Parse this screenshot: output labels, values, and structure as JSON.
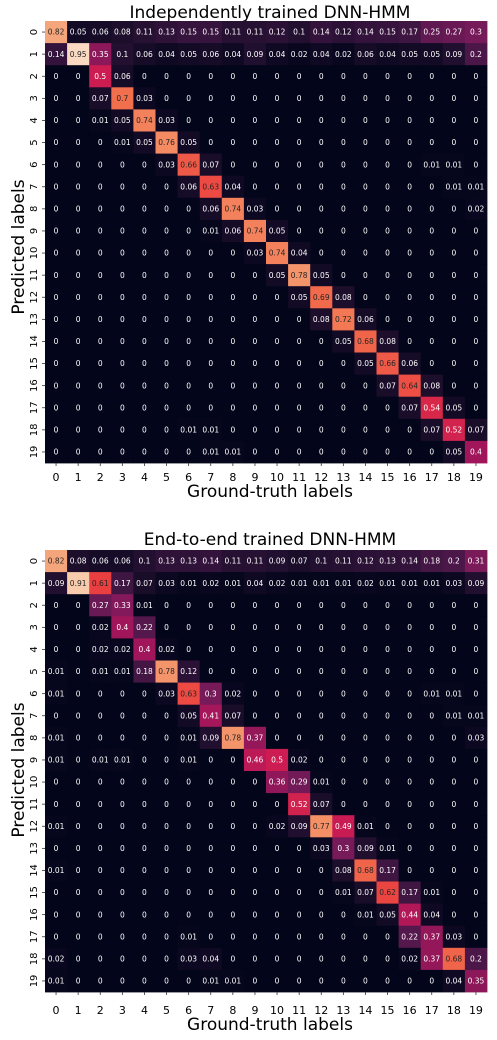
{
  "chart_data": [
    {
      "type": "heatmap",
      "title": "Independently trained DNN-HMM",
      "xlabel": "Ground-truth labels",
      "ylabel": "Predicted labels",
      "x_ticks": [
        "0",
        "1",
        "2",
        "3",
        "4",
        "5",
        "6",
        "7",
        "8",
        "9",
        "10",
        "11",
        "12",
        "13",
        "14",
        "15",
        "16",
        "17",
        "18",
        "19"
      ],
      "y_ticks": [
        "0",
        "1",
        "2",
        "3",
        "4",
        "5",
        "6",
        "7",
        "8",
        "9",
        "10",
        "11",
        "12",
        "13",
        "14",
        "15",
        "16",
        "17",
        "18",
        "19"
      ],
      "colormap": "rocket",
      "value_range": [
        0,
        1
      ],
      "colorbar": false,
      "values": [
        [
          0.82,
          0.05,
          0.06,
          0.08,
          0.11,
          0.13,
          0.15,
          0.15,
          0.11,
          0.11,
          0.12,
          0.1,
          0.14,
          0.12,
          0.14,
          0.15,
          0.17,
          0.25,
          0.27,
          0.3
        ],
        [
          0.14,
          0.95,
          0.35,
          0.1,
          0.06,
          0.04,
          0.05,
          0.06,
          0.04,
          0.09,
          0.04,
          0.02,
          0.04,
          0.02,
          0.06,
          0.04,
          0.05,
          0.05,
          0.09,
          0.2
        ],
        [
          0,
          0,
          0.5,
          0.06,
          0,
          0,
          0,
          0,
          0,
          0,
          0,
          0,
          0,
          0,
          0,
          0,
          0,
          0,
          0,
          0
        ],
        [
          0,
          0,
          0.07,
          0.7,
          0.03,
          0,
          0,
          0,
          0,
          0,
          0,
          0,
          0,
          0,
          0,
          0,
          0,
          0,
          0,
          0
        ],
        [
          0,
          0,
          0.01,
          0.05,
          0.74,
          0.03,
          0,
          0,
          0,
          0,
          0,
          0,
          0,
          0,
          0,
          0,
          0,
          0,
          0,
          0
        ],
        [
          0,
          0,
          0,
          0.01,
          0.05,
          0.76,
          0.05,
          0,
          0,
          0,
          0,
          0,
          0,
          0,
          0,
          0,
          0,
          0,
          0,
          0
        ],
        [
          0,
          0,
          0,
          0,
          0,
          0.03,
          0.66,
          0.07,
          0,
          0,
          0,
          0,
          0,
          0,
          0,
          0,
          0,
          0.01,
          0.01,
          0
        ],
        [
          0,
          0,
          0,
          0,
          0,
          0,
          0.06,
          0.63,
          0.04,
          0,
          0,
          0,
          0,
          0,
          0,
          0,
          0,
          0,
          0.01,
          0.01
        ],
        [
          0,
          0,
          0,
          0,
          0,
          0,
          0,
          0.06,
          0.74,
          0.03,
          0,
          0,
          0,
          0,
          0,
          0,
          0,
          0,
          0,
          0.02
        ],
        [
          0,
          0,
          0,
          0,
          0,
          0,
          0,
          0.01,
          0.06,
          0.74,
          0.05,
          0,
          0,
          0,
          0,
          0,
          0,
          0,
          0,
          0
        ],
        [
          0,
          0,
          0,
          0,
          0,
          0,
          0,
          0,
          0,
          0.03,
          0.74,
          0.04,
          0,
          0,
          0,
          0,
          0,
          0,
          0,
          0
        ],
        [
          0,
          0,
          0,
          0,
          0,
          0,
          0,
          0,
          0,
          0,
          0.05,
          0.78,
          0.05,
          0,
          0,
          0,
          0,
          0,
          0,
          0
        ],
        [
          0,
          0,
          0,
          0,
          0,
          0,
          0,
          0,
          0,
          0,
          0,
          0.05,
          0.69,
          0.08,
          0,
          0,
          0,
          0,
          0,
          0
        ],
        [
          0,
          0,
          0,
          0,
          0,
          0,
          0,
          0,
          0,
          0,
          0,
          0,
          0.08,
          0.72,
          0.06,
          0,
          0,
          0,
          0,
          0
        ],
        [
          0,
          0,
          0,
          0,
          0,
          0,
          0,
          0,
          0,
          0,
          0,
          0,
          0,
          0.05,
          0.68,
          0.08,
          0,
          0,
          0,
          0
        ],
        [
          0,
          0,
          0,
          0,
          0,
          0,
          0,
          0,
          0,
          0,
          0,
          0,
          0,
          0,
          0.05,
          0.66,
          0.06,
          0,
          0,
          0
        ],
        [
          0,
          0,
          0,
          0,
          0,
          0,
          0,
          0,
          0,
          0,
          0,
          0,
          0,
          0,
          0,
          0.07,
          0.64,
          0.08,
          0,
          0
        ],
        [
          0,
          0,
          0,
          0,
          0,
          0,
          0,
          0,
          0,
          0,
          0,
          0,
          0,
          0,
          0,
          0,
          0.07,
          0.54,
          0.05,
          0
        ],
        [
          0,
          0,
          0,
          0,
          0,
          0,
          0.01,
          0.01,
          0,
          0,
          0,
          0,
          0,
          0,
          0,
          0,
          0,
          0.07,
          0.52,
          0.07
        ],
        [
          0,
          0,
          0,
          0,
          0,
          0,
          0,
          0.01,
          0.01,
          0,
          0,
          0,
          0,
          0,
          0,
          0,
          0,
          0,
          0.05,
          0.4
        ]
      ]
    },
    {
      "type": "heatmap",
      "title": "End-to-end trained DNN-HMM",
      "xlabel": "Ground-truth labels",
      "ylabel": "Predicted labels",
      "x_ticks": [
        "0",
        "1",
        "2",
        "3",
        "4",
        "5",
        "6",
        "7",
        "8",
        "9",
        "10",
        "11",
        "12",
        "13",
        "14",
        "15",
        "16",
        "17",
        "18",
        "19"
      ],
      "y_ticks": [
        "0",
        "1",
        "2",
        "3",
        "4",
        "5",
        "6",
        "7",
        "8",
        "9",
        "10",
        "11",
        "12",
        "13",
        "14",
        "15",
        "16",
        "17",
        "18",
        "19"
      ],
      "colormap": "rocket",
      "value_range": [
        0,
        1
      ],
      "colorbar": false,
      "values": [
        [
          0.82,
          0.08,
          0.06,
          0.06,
          0.1,
          0.13,
          0.13,
          0.14,
          0.11,
          0.11,
          0.09,
          0.07,
          0.1,
          0.11,
          0.12,
          0.13,
          0.14,
          0.18,
          0.2,
          0.31
        ],
        [
          0.09,
          0.91,
          0.61,
          0.17,
          0.07,
          0.03,
          0.01,
          0.02,
          0.01,
          0.04,
          0.02,
          0.01,
          0.01,
          0.01,
          0.02,
          0.01,
          0.01,
          0.01,
          0.03,
          0.09
        ],
        [
          0,
          0,
          0.27,
          0.33,
          0.01,
          0,
          0,
          0,
          0,
          0,
          0,
          0,
          0,
          0,
          0,
          0,
          0,
          0,
          0,
          0
        ],
        [
          0,
          0,
          0.02,
          0.4,
          0.22,
          0,
          0,
          0,
          0,
          0,
          0,
          0,
          0,
          0,
          0,
          0,
          0,
          0,
          0,
          0
        ],
        [
          0,
          0,
          0.02,
          0.02,
          0.4,
          0.02,
          0,
          0,
          0,
          0,
          0,
          0,
          0,
          0,
          0,
          0,
          0,
          0,
          0,
          0
        ],
        [
          0.01,
          0,
          0.01,
          0.01,
          0.18,
          0.78,
          0.12,
          0,
          0,
          0,
          0,
          0,
          0,
          0,
          0,
          0,
          0,
          0,
          0,
          0
        ],
        [
          0.01,
          0,
          0,
          0,
          0,
          0.03,
          0.63,
          0.3,
          0.02,
          0,
          0,
          0,
          0,
          0,
          0,
          0,
          0,
          0.01,
          0.01,
          0
        ],
        [
          0,
          0,
          0,
          0,
          0,
          0,
          0.05,
          0.41,
          0.07,
          0,
          0,
          0,
          0,
          0,
          0,
          0,
          0,
          0,
          0.01,
          0.01
        ],
        [
          0.01,
          0,
          0,
          0,
          0,
          0,
          0.01,
          0.09,
          0.78,
          0.37,
          0,
          0,
          0,
          0,
          0,
          0,
          0,
          0,
          0,
          0.03
        ],
        [
          0.01,
          0,
          0.01,
          0.01,
          0,
          0,
          0.01,
          0,
          0,
          0.46,
          0.5,
          0.02,
          0,
          0,
          0,
          0,
          0,
          0,
          0,
          0
        ],
        [
          0,
          0,
          0,
          0,
          0,
          0,
          0,
          0,
          0,
          0,
          0.36,
          0.29,
          0.01,
          0,
          0,
          0,
          0,
          0,
          0,
          0
        ],
        [
          0,
          0,
          0,
          0,
          0,
          0,
          0,
          0,
          0,
          0,
          0,
          0.52,
          0.07,
          0,
          0,
          0,
          0,
          0,
          0,
          0
        ],
        [
          0.01,
          0,
          0,
          0,
          0,
          0,
          0,
          0,
          0,
          0,
          0.02,
          0.09,
          0.77,
          0.49,
          0.01,
          0,
          0,
          0,
          0,
          0
        ],
        [
          0,
          0,
          0,
          0,
          0,
          0,
          0,
          0,
          0,
          0,
          0,
          0,
          0.03,
          0.3,
          0.09,
          0.01,
          0,
          0,
          0,
          0
        ],
        [
          0.01,
          0,
          0,
          0,
          0,
          0,
          0,
          0,
          0,
          0,
          0,
          0,
          0,
          0.08,
          0.68,
          0.17,
          0,
          0,
          0,
          0
        ],
        [
          0,
          0,
          0,
          0,
          0,
          0,
          0,
          0,
          0,
          0,
          0,
          0,
          0,
          0.01,
          0.07,
          0.62,
          0.17,
          0.01,
          0,
          0
        ],
        [
          0,
          0,
          0,
          0,
          0,
          0,
          0,
          0,
          0,
          0,
          0,
          0,
          0,
          0,
          0.01,
          0.05,
          0.44,
          0.04,
          0,
          0
        ],
        [
          0,
          0,
          0,
          0,
          0,
          0,
          0.01,
          0,
          0,
          0,
          0,
          0,
          0,
          0,
          0,
          0,
          0.22,
          0.37,
          0.03,
          0
        ],
        [
          0.02,
          0,
          0,
          0,
          0,
          0,
          0.03,
          0.04,
          0,
          0,
          0,
          0,
          0,
          0,
          0,
          0,
          0.02,
          0.37,
          0.68,
          0.2
        ],
        [
          0.01,
          0,
          0,
          0,
          0,
          0,
          0,
          0.01,
          0.01,
          0,
          0,
          0,
          0,
          0,
          0,
          0,
          0,
          0,
          0.04,
          0.35
        ]
      ]
    }
  ]
}
